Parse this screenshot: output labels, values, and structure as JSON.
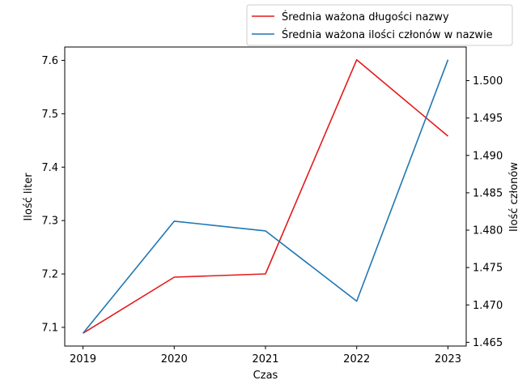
{
  "chart_data": {
    "type": "line",
    "x": [
      2019,
      2020,
      2021,
      2022,
      2023
    ],
    "x_tick_labels": [
      "2019",
      "2020",
      "2021",
      "2022",
      "2023"
    ],
    "xlabel": "Czas",
    "xlim": [
      2018.8,
      2023.2
    ],
    "left_axis": {
      "label": "Ilość liter",
      "ylim": [
        7.065,
        7.625
      ],
      "ticks": [
        7.1,
        7.2,
        7.3,
        7.4,
        7.5,
        7.6
      ],
      "tick_labels": [
        "7.1",
        "7.2",
        "7.3",
        "7.4",
        "7.5",
        "7.6"
      ]
    },
    "right_axis": {
      "label": "Ilość członów",
      "ylim": [
        1.4645,
        1.5045
      ],
      "ticks": [
        1.465,
        1.47,
        1.475,
        1.48,
        1.485,
        1.49,
        1.495,
        1.5
      ],
      "tick_labels": [
        "1.465",
        "1.470",
        "1.475",
        "1.480",
        "1.485",
        "1.490",
        "1.495",
        "1.500"
      ]
    },
    "series": [
      {
        "name": "Średnia ważona długości nazwy",
        "axis": "left",
        "color": "#e41a1c",
        "values": [
          7.089,
          7.194,
          7.2,
          7.601,
          7.458
        ]
      },
      {
        "name": "Średnia ważona ilości członów w nazwie",
        "axis": "right",
        "color": "#1f77b4",
        "values": [
          1.4662,
          1.4812,
          1.4799,
          1.4705,
          1.5028
        ]
      }
    ],
    "grid": false,
    "legend_position": "top-right"
  }
}
